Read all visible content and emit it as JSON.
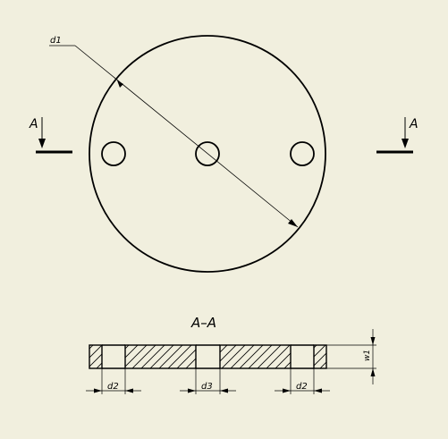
{
  "section_marker_left": "A",
  "section_marker_right": "A",
  "diameter_label": "d1",
  "section_title": "A–A",
  "dims": {
    "hole_left": "d2",
    "hole_center": "d3",
    "hole_right": "d2",
    "thickness": "w1"
  },
  "colors": {
    "background": "#f1efde",
    "line": "#000000"
  }
}
